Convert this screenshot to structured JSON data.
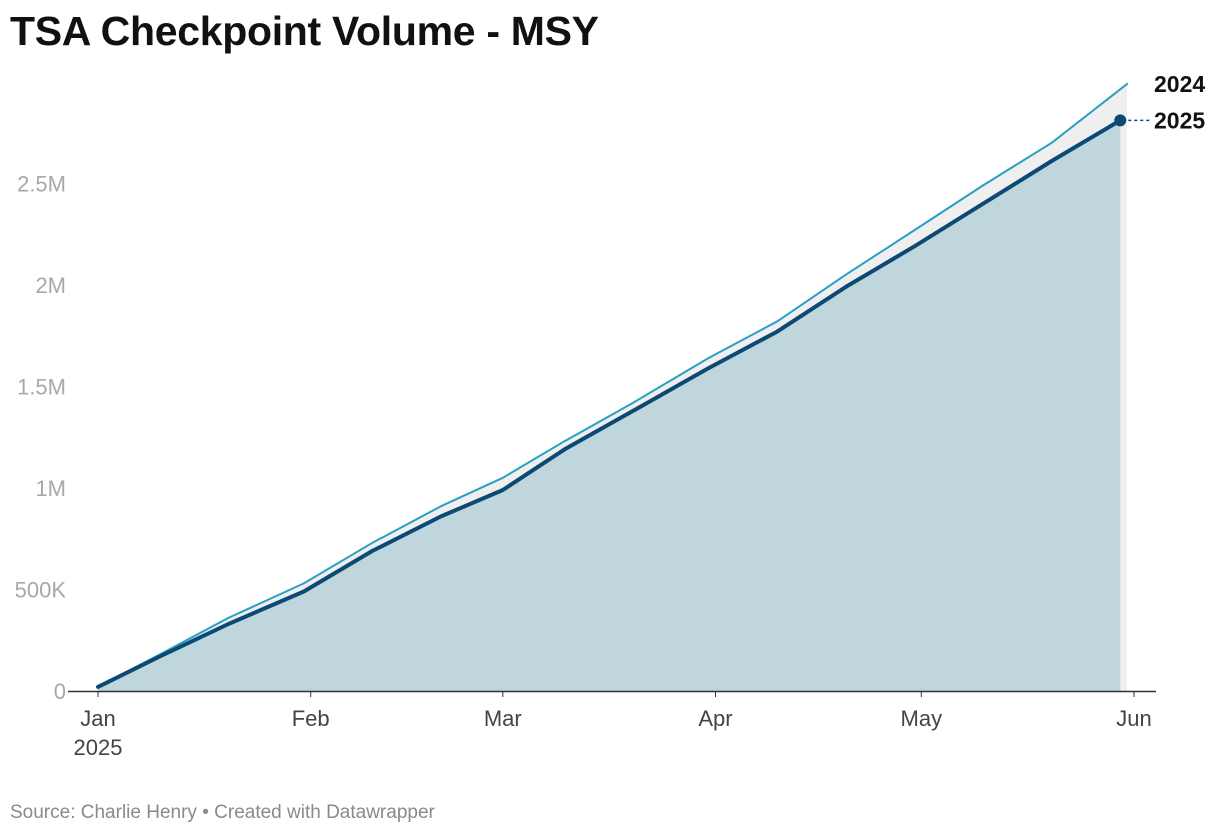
{
  "title": "TSA Checkpoint Volume - MSY",
  "footer": {
    "source": "Source: Charlie Henry",
    "separator": "•",
    "credit": "Created with Datawrapper"
  },
  "colors": {
    "series_2024": "#2a9fc4",
    "series_2025": "#0c4a75",
    "area_2025": "#bfd6dd",
    "area_2024_extra": "#efefef",
    "tick_text": "#a8a8a8",
    "axis": "#333333"
  },
  "chart_data": {
    "type": "area",
    "title": "TSA Checkpoint Volume - MSY",
    "xlabel": "",
    "ylabel": "",
    "x_ticks": [
      {
        "date": "2025-01-01",
        "label": "Jan",
        "sublabel": "2025"
      },
      {
        "date": "2025-02-01",
        "label": "Feb",
        "sublabel": ""
      },
      {
        "date": "2025-03-01",
        "label": "Mar",
        "sublabel": ""
      },
      {
        "date": "2025-04-01",
        "label": "Apr",
        "sublabel": ""
      },
      {
        "date": "2025-05-01",
        "label": "May",
        "sublabel": ""
      },
      {
        "date": "2025-06-01",
        "label": "Jun",
        "sublabel": ""
      }
    ],
    "y_ticks": [
      {
        "value": 0,
        "label": "0"
      },
      {
        "value": 500000,
        "label": "500K"
      },
      {
        "value": 1000000,
        "label": "1M"
      },
      {
        "value": 1500000,
        "label": "1.5M"
      },
      {
        "value": 2000000,
        "label": "2M"
      },
      {
        "value": 2500000,
        "label": "2.5M"
      }
    ],
    "xlim": [
      "2025-01-01",
      "2025-06-01"
    ],
    "ylim": [
      0,
      2950000
    ],
    "grid": false,
    "series": [
      {
        "name": "2024",
        "dates": [
          "2025-01-01",
          "2025-01-10",
          "2025-01-20",
          "2025-01-31",
          "2025-02-10",
          "2025-02-20",
          "2025-03-01",
          "2025-03-10",
          "2025-03-20",
          "2025-03-31",
          "2025-04-10",
          "2025-04-20",
          "2025-04-30",
          "2025-05-10",
          "2025-05-20",
          "2025-05-31"
        ],
        "values": [
          20000,
          180000,
          360000,
          530000,
          730000,
          910000,
          1050000,
          1230000,
          1420000,
          1640000,
          1820000,
          2050000,
          2270000,
          2490000,
          2700000,
          2990000
        ]
      },
      {
        "name": "2025",
        "dates": [
          "2025-01-01",
          "2025-01-10",
          "2025-01-20",
          "2025-01-31",
          "2025-02-10",
          "2025-02-20",
          "2025-03-01",
          "2025-03-10",
          "2025-03-20",
          "2025-03-31",
          "2025-04-10",
          "2025-04-20",
          "2025-04-30",
          "2025-05-10",
          "2025-05-20",
          "2025-05-30"
        ],
        "values": [
          20000,
          170000,
          330000,
          490000,
          690000,
          860000,
          990000,
          1190000,
          1380000,
          1590000,
          1770000,
          1990000,
          2190000,
          2400000,
          2610000,
          2810000
        ]
      }
    ]
  }
}
